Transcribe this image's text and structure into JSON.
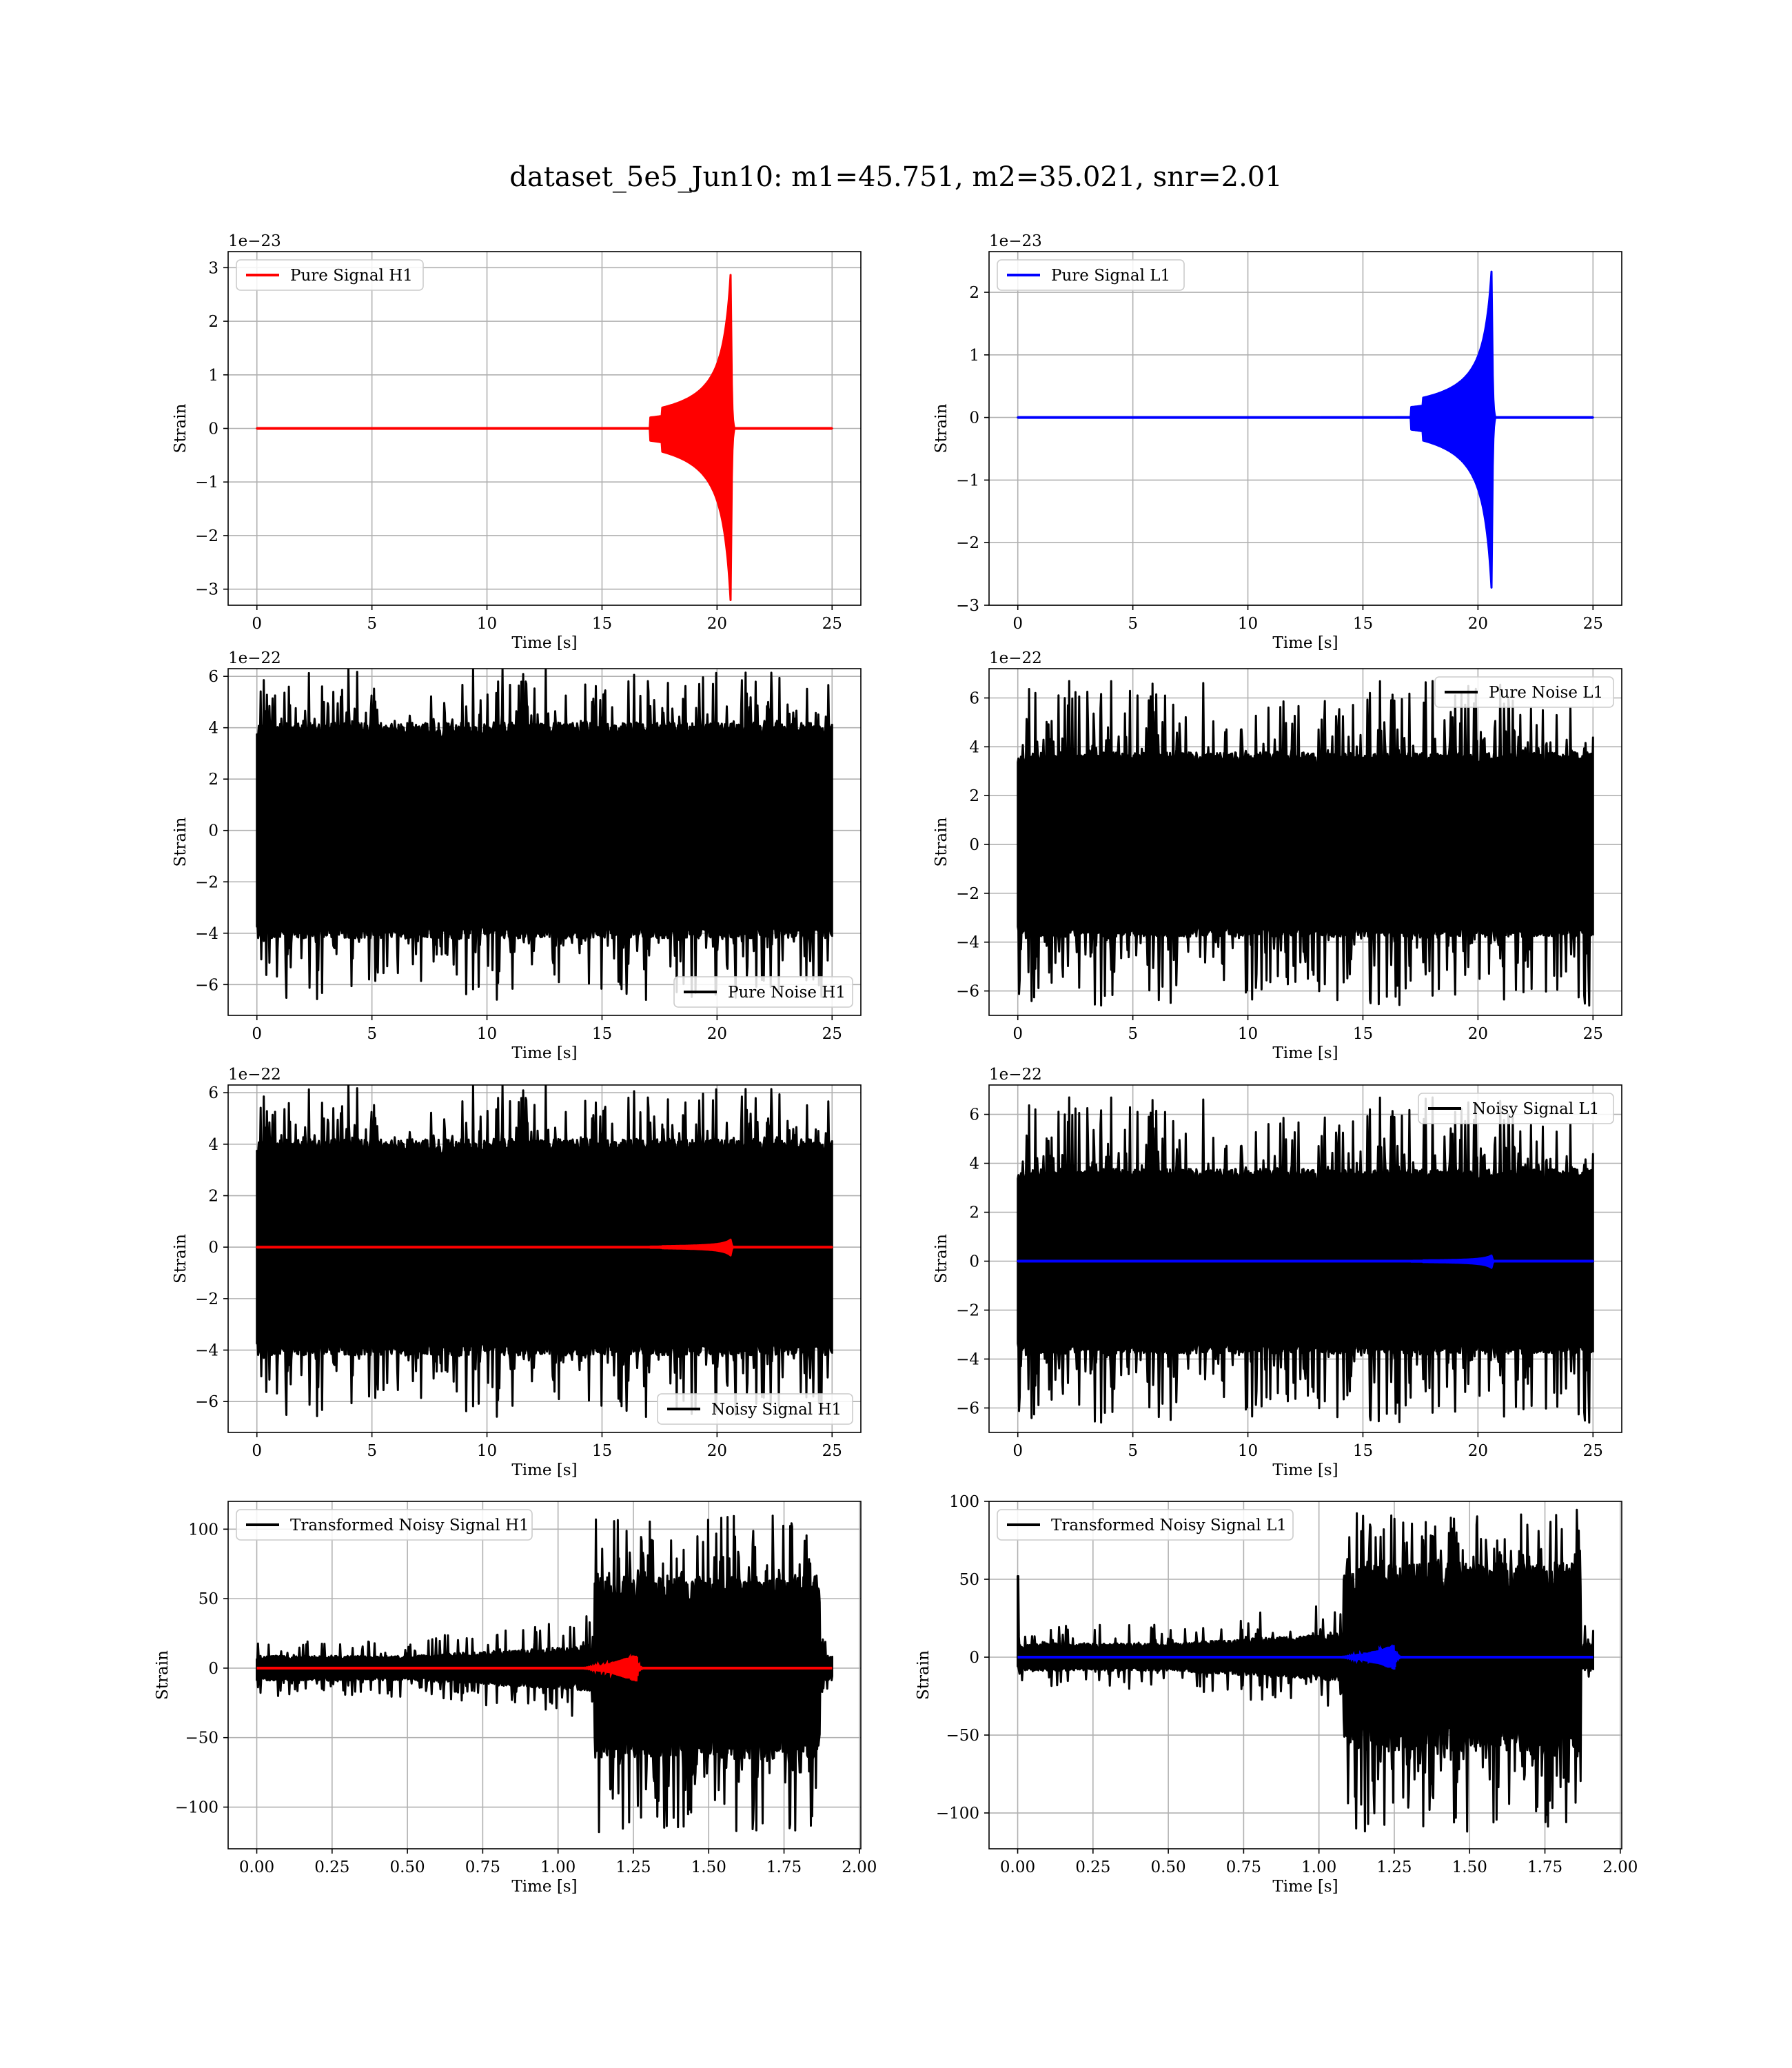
{
  "suptitle": "dataset_5e5_Jun10: m1=45.751, m2=35.021, snr=2.01",
  "chart_data": [
    {
      "id": "h1_signal",
      "type": "line",
      "title": "",
      "xlabel": "Time [s]",
      "ylabel": "Strain",
      "offset_text": "1e−23",
      "xlim": [
        -1.25,
        26.25
      ],
      "ylim": [
        -3.3,
        3.3
      ],
      "xticks": [
        0,
        5,
        10,
        15,
        20,
        25
      ],
      "xticklabels": [
        "0",
        "5",
        "10",
        "15",
        "20",
        "25"
      ],
      "yticks": [
        -3,
        -2,
        -1,
        0,
        1,
        2,
        3
      ],
      "yticklabels": [
        "−3",
        "−2",
        "−1",
        "0",
        "1",
        "2",
        "3"
      ],
      "grid": true,
      "legend_loc": "upper-left",
      "series": [
        {
          "name": "Pure Signal H1",
          "color": "#ff0000",
          "kind": "chirp",
          "x_range": [
            0,
            25
          ],
          "t_peak": 20.6,
          "amp_pos": 2.95,
          "amp_neg": -3.3
        }
      ]
    },
    {
      "id": "l1_signal",
      "type": "line",
      "title": "",
      "xlabel": "Time [s]",
      "ylabel": "Strain",
      "offset_text": "1e−23",
      "xlim": [
        -1.25,
        26.25
      ],
      "ylim": [
        -3.0,
        2.65
      ],
      "xticks": [
        0,
        5,
        10,
        15,
        20,
        25
      ],
      "xticklabels": [
        "0",
        "5",
        "10",
        "15",
        "20",
        "25"
      ],
      "yticks": [
        -3,
        -2,
        -1,
        0,
        1,
        2
      ],
      "yticklabels": [
        "−3",
        "−2",
        "−1",
        "0",
        "1",
        "2"
      ],
      "grid": true,
      "legend_loc": "upper-left",
      "series": [
        {
          "name": "Pure Signal L1",
          "color": "#0000ff",
          "kind": "chirp",
          "x_range": [
            0,
            25
          ],
          "t_peak": 20.6,
          "amp_pos": 2.4,
          "amp_neg": -2.8
        }
      ]
    },
    {
      "id": "h1_noise",
      "type": "line",
      "title": "",
      "xlabel": "Time [s]",
      "ylabel": "Strain",
      "offset_text": "1e−22",
      "xlim": [
        -1.25,
        26.25
      ],
      "ylim": [
        -7.2,
        6.3
      ],
      "xticks": [
        0,
        5,
        10,
        15,
        20,
        25
      ],
      "xticklabels": [
        "0",
        "5",
        "10",
        "15",
        "20",
        "25"
      ],
      "yticks": [
        -6,
        -4,
        -2,
        0,
        2,
        4,
        6
      ],
      "yticklabels": [
        "−6",
        "−4",
        "−2",
        "0",
        "2",
        "4",
        "6"
      ],
      "grid": true,
      "legend_loc": "lower-right",
      "series": [
        {
          "name": "Pure Noise H1",
          "color": "#000000",
          "kind": "noise",
          "x_range": [
            0,
            25
          ],
          "core": 4.0,
          "max_spike": 6.4,
          "min_spike": -6.6,
          "seed": 11
        }
      ]
    },
    {
      "id": "l1_noise",
      "type": "line",
      "title": "",
      "xlabel": "Time [s]",
      "ylabel": "Strain",
      "offset_text": "1e−22",
      "xlim": [
        -1.25,
        26.25
      ],
      "ylim": [
        -7.0,
        7.2
      ],
      "xticks": [
        0,
        5,
        10,
        15,
        20,
        25
      ],
      "xticklabels": [
        "0",
        "5",
        "10",
        "15",
        "20",
        "25"
      ],
      "yticks": [
        -6,
        -4,
        -2,
        0,
        2,
        4,
        6
      ],
      "yticklabels": [
        "−6",
        "−4",
        "−2",
        "0",
        "2",
        "4",
        "6"
      ],
      "grid": true,
      "legend_loc": "upper-right",
      "series": [
        {
          "name": "Pure Noise L1",
          "color": "#000000",
          "kind": "noise",
          "x_range": [
            0,
            25
          ],
          "core": 3.6,
          "max_spike": 6.7,
          "min_spike": -6.6,
          "seed": 23
        }
      ]
    },
    {
      "id": "h1_noisy",
      "type": "line",
      "title": "",
      "xlabel": "Time [s]",
      "ylabel": "Strain",
      "offset_text": "1e−22",
      "xlim": [
        -1.25,
        26.25
      ],
      "ylim": [
        -7.2,
        6.3
      ],
      "xticks": [
        0,
        5,
        10,
        15,
        20,
        25
      ],
      "xticklabels": [
        "0",
        "5",
        "10",
        "15",
        "20",
        "25"
      ],
      "yticks": [
        -6,
        -4,
        -2,
        0,
        2,
        4,
        6
      ],
      "yticklabels": [
        "−6",
        "−4",
        "−2",
        "0",
        "2",
        "4",
        "6"
      ],
      "grid": true,
      "legend_loc": "lower-right",
      "series": [
        {
          "name": "Noisy Signal H1",
          "color": "#000000",
          "kind": "noise",
          "x_range": [
            0,
            25
          ],
          "core": 4.0,
          "max_spike": 6.4,
          "min_spike": -6.6,
          "seed": 11
        },
        {
          "name": "",
          "color": "#ff0000",
          "kind": "chirp",
          "x_range": [
            0,
            25
          ],
          "t_peak": 20.6,
          "amp_pos": 0.3,
          "amp_neg": -0.33
        }
      ]
    },
    {
      "id": "l1_noisy",
      "type": "line",
      "title": "",
      "xlabel": "Time [s]",
      "ylabel": "Strain",
      "offset_text": "1e−22",
      "xlim": [
        -1.25,
        26.25
      ],
      "ylim": [
        -7.0,
        7.2
      ],
      "xticks": [
        0,
        5,
        10,
        15,
        20,
        25
      ],
      "xticklabels": [
        "0",
        "5",
        "10",
        "15",
        "20",
        "25"
      ],
      "yticks": [
        -6,
        -4,
        -2,
        0,
        2,
        4,
        6
      ],
      "yticklabels": [
        "−6",
        "−4",
        "−2",
        "0",
        "2",
        "4",
        "6"
      ],
      "grid": true,
      "legend_loc": "upper-right",
      "series": [
        {
          "name": "Noisy Signal L1",
          "color": "#000000",
          "kind": "noise",
          "x_range": [
            0,
            25
          ],
          "core": 3.6,
          "max_spike": 6.7,
          "min_spike": -6.6,
          "seed": 23
        },
        {
          "name": "",
          "color": "#0000ff",
          "kind": "chirp",
          "x_range": [
            0,
            25
          ],
          "t_peak": 20.6,
          "amp_pos": 0.24,
          "amp_neg": -0.28
        }
      ]
    },
    {
      "id": "h1_transformed",
      "type": "line",
      "title": "",
      "xlabel": "Time [s]",
      "ylabel": "Strain",
      "offset_text": "",
      "xlim": [
        -0.095,
        2.005
      ],
      "ylim": [
        -130,
        120
      ],
      "xticks": [
        0,
        0.25,
        0.5,
        0.75,
        1.0,
        1.25,
        1.5,
        1.75,
        2.0
      ],
      "xticklabels": [
        "0.00",
        "0.25",
        "0.50",
        "0.75",
        "1.00",
        "1.25",
        "1.50",
        "1.75",
        "2.00"
      ],
      "yticks": [
        -100,
        -50,
        0,
        50,
        100
      ],
      "yticklabels": [
        "−100",
        "−50",
        "0",
        "50",
        "100"
      ],
      "grid": true,
      "legend_loc": "upper-left",
      "series": [
        {
          "name": "Transformed Noisy Signal H1",
          "color": "#000000",
          "kind": "transformed",
          "x_range": [
            0,
            1.91
          ],
          "step_at": 1.12,
          "end_loud": 1.87,
          "low_amp": 8,
          "mid_amp": 15,
          "high_amp": 60,
          "max_spike": 110,
          "min_spike": -118,
          "seed": 37
        },
        {
          "name": "",
          "color": "#ff0000",
          "kind": "small_chirp",
          "x_range": [
            0,
            1.91
          ],
          "t_peak": 1.26,
          "amp": 10
        }
      ]
    },
    {
      "id": "l1_transformed",
      "type": "line",
      "title": "",
      "xlabel": "Time [s]",
      "ylabel": "Strain",
      "offset_text": "",
      "xlim": [
        -0.095,
        2.005
      ],
      "ylim": [
        -123,
        100
      ],
      "xticks": [
        0,
        0.25,
        0.5,
        0.75,
        1.0,
        1.25,
        1.5,
        1.75,
        2.0
      ],
      "xticklabels": [
        "0.00",
        "0.25",
        "0.50",
        "0.75",
        "1.00",
        "1.25",
        "1.50",
        "1.75",
        "2.00"
      ],
      "yticks": [
        -100,
        -50,
        0,
        50,
        100
      ],
      "yticklabels": [
        "−100",
        "−50",
        "0",
        "50",
        "100"
      ],
      "grid": true,
      "legend_loc": "upper-left",
      "series": [
        {
          "name": "Transformed Noisy Signal L1",
          "color": "#000000",
          "kind": "transformed",
          "x_range": [
            0,
            1.91
          ],
          "step_at": 1.08,
          "end_loud": 1.87,
          "low_amp": 8,
          "mid_amp": 14,
          "high_amp": 55,
          "max_spike": 95,
          "min_spike": -112,
          "seed": 53,
          "spike_at_start": 52
        },
        {
          "name": "",
          "color": "#0000ff",
          "kind": "small_chirp",
          "x_range": [
            0,
            1.91
          ],
          "t_peak": 1.25,
          "amp": 8
        }
      ]
    }
  ]
}
